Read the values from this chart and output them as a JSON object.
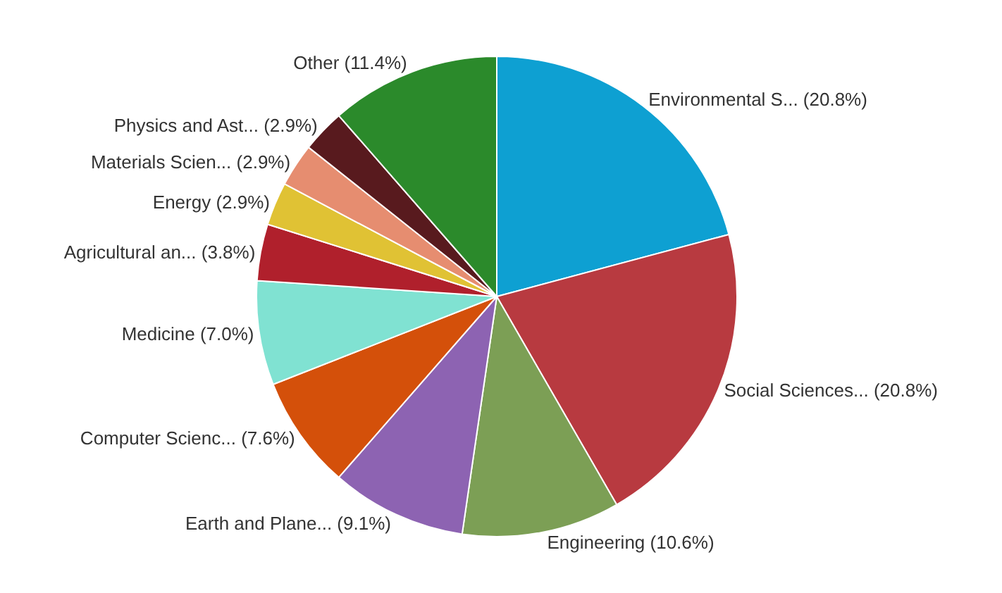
{
  "chart_data": {
    "type": "pie",
    "categories": [
      "Environmental S... (20.8%)",
      "Social Sciences... (20.8%)",
      "Engineering (10.6%)",
      "Earth and Plane... (9.1%)",
      "Computer Scienc... (7.6%)",
      "Medicine (7.0%)",
      "Agricultural an... (3.8%)",
      "Energy (2.9%)",
      "Materials Scien... (2.9%)",
      "Physics and Ast... (2.9%)",
      "Other (11.4%)"
    ],
    "values": [
      20.8,
      20.8,
      10.6,
      9.1,
      7.6,
      7.0,
      3.8,
      2.9,
      2.9,
      2.9,
      11.4
    ],
    "colors": [
      "#0ea0d2",
      "#b83a40",
      "#7c9f55",
      "#8d63b2",
      "#d4500a",
      "#80e2d2",
      "#b0202c",
      "#e0c234",
      "#e68d70",
      "#581a1e",
      "#2b8a2b"
    ],
    "legend": false
  }
}
